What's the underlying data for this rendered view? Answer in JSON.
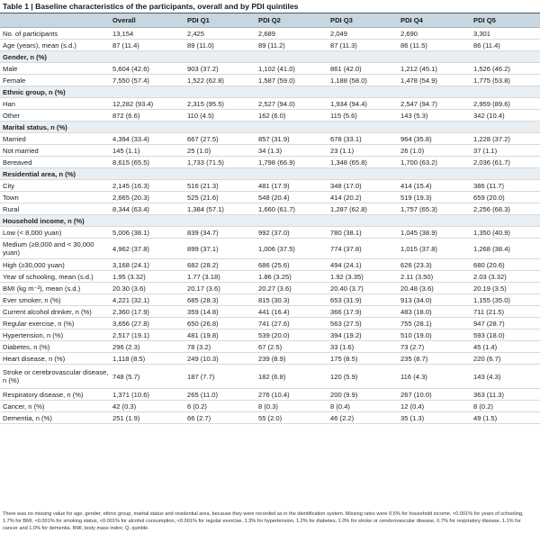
{
  "title": "Table 1 | Baseline characteristics of the participants, overall and by PDI quintiles",
  "headers": [
    "",
    "Overall",
    "PDI Q1",
    "PDI Q2",
    "PDI Q3",
    "PDI Q4",
    "PDI Q5"
  ],
  "rows": [
    {
      "t": "r",
      "h": 1,
      "cells": [
        "No. of participants",
        "13,154",
        "2,425",
        "2,689",
        "2,049",
        "2,690",
        "3,301"
      ]
    },
    {
      "t": "r",
      "h": 1,
      "cells": [
        "Age (years), mean (s.d.)",
        "87 (11.4)",
        "89 (11.0)",
        "89 (11.2)",
        "87 (11.3)",
        "86 (11.5)",
        "86 (11.4)"
      ]
    },
    {
      "t": "s",
      "label": "Gender, n (%)"
    },
    {
      "t": "r",
      "h": 1,
      "cells": [
        "Male",
        "5,604 (42.6)",
        "903 (37.2)",
        "1,102 (41.0)",
        "861 (42.0)",
        "1,212 (45.1)",
        "1,526 (46.2)"
      ]
    },
    {
      "t": "r",
      "h": 1,
      "cells": [
        "Female",
        "7,550 (57.4)",
        "1,522 (62.8)",
        "1,587 (59.0)",
        "1,188 (58.0)",
        "1,478 (54.9)",
        "1,775 (53.8)"
      ]
    },
    {
      "t": "s",
      "label": "Ethnic group, n (%)"
    },
    {
      "t": "r",
      "h": 1,
      "cells": [
        "Han",
        "12,282 (93.4)",
        "2,315 (95.5)",
        "2,527 (94.0)",
        "1,934 (94.4)",
        "2,547 (94.7)",
        "2,959 (89.6)"
      ]
    },
    {
      "t": "r",
      "h": 1,
      "cells": [
        "Other",
        "872 (6.6)",
        "110 (4.5)",
        "162 (6.0)",
        "115 (5.6)",
        "143 (5.3)",
        "342 (10.4)"
      ]
    },
    {
      "t": "s",
      "label": "Marital status, n (%)"
    },
    {
      "t": "r",
      "h": 1,
      "cells": [
        "Married",
        "4,394 (33.4)",
        "667 (27.5)",
        "857 (31.9)",
        "678 (33.1)",
        "964 (35.8)",
        "1,228 (37.2)"
      ]
    },
    {
      "t": "r",
      "h": 1,
      "cells": [
        "Not married",
        "145 (1.1)",
        "25 (1.0)",
        "34 (1.3)",
        "23 (1.1)",
        "26 (1.0)",
        "37 (1.1)"
      ]
    },
    {
      "t": "r",
      "h": 1,
      "cells": [
        "Bereaved",
        "8,615 (65.5)",
        "1,733 (71.5)",
        "1,798 (66.9)",
        "1,348 (65.8)",
        "1,700 (63.2)",
        "2,036 (61.7)"
      ]
    },
    {
      "t": "s",
      "label": "Residential area, n (%)"
    },
    {
      "t": "r",
      "h": 1,
      "cells": [
        "City",
        "2,145 (16.3)",
        "516 (21.3)",
        "481 (17.9)",
        "348 (17.0)",
        "414 (15.4)",
        "386 (11.7)"
      ]
    },
    {
      "t": "r",
      "h": 1,
      "cells": [
        "Town",
        "2,665 (20.3)",
        "525 (21.6)",
        "548 (20.4)",
        "414 (20.2)",
        "519 (19.3)",
        "659 (20.0)"
      ]
    },
    {
      "t": "r",
      "h": 1,
      "cells": [
        "Rural",
        "8,344 (63.4)",
        "1,384 (57.1)",
        "1,660 (61.7)",
        "1,287 (62.8)",
        "1,757 (65.3)",
        "2,256 (68.3)"
      ]
    },
    {
      "t": "s",
      "label": "Household income, n (%)"
    },
    {
      "t": "r",
      "h": 1,
      "cells": [
        "Low (< 8,000 yuan)",
        "5,006 (38.1)",
        "839 (34.7)",
        "992 (37.0)",
        "780 (38.1)",
        "1,045 (38.9)",
        "1,350 (40.9)"
      ]
    },
    {
      "t": "r",
      "h": 2,
      "cells": [
        "Medium (≥8,000 and < 30,000 yuan)",
        "4,962 (37.8)",
        "899 (37.1)",
        "1,006 (37.5)",
        "774 (37.8)",
        "1,015 (37.8)",
        "1,268 (38.4)"
      ]
    },
    {
      "t": "r",
      "h": 1,
      "cells": [
        "High (≥30,000 yuan)",
        "3,168 (24.1)",
        "682 (28.2)",
        "686 (25.6)",
        "494 (24.1)",
        "626 (23.3)",
        "680 (20.6)"
      ]
    },
    {
      "t": "r",
      "h": 1,
      "cells": [
        "Year of schooling, mean (s.d.)",
        "1.95 (3.32)",
        "1.77 (3.18)",
        "1.86 (3.25)",
        "1.92 (3.35)",
        "2.11 (3.50)",
        "2.03 (3.32)"
      ]
    },
    {
      "t": "r",
      "h": 1,
      "cells": [
        "BMI (kg m⁻²), mean (s.d.)",
        "20.30 (3.6)",
        "20.17 (3.6)",
        "20.27 (3.6)",
        "20.40 (3.7)",
        "20.48 (3.6)",
        "20.19 (3.5)"
      ]
    },
    {
      "t": "r",
      "h": 1,
      "cells": [
        "Ever smoker, n (%)",
        "4,221 (32.1)",
        "685 (28.3)",
        "815 (30.3)",
        "653 (31.9)",
        "913 (34.0)",
        "1,155 (35.0)"
      ]
    },
    {
      "t": "r",
      "h": 1,
      "cells": [
        "Current alcohol drinker, n (%)",
        "2,360 (17.9)",
        "359 (14.8)",
        "441 (16.4)",
        "366 (17.9)",
        "483 (18.0)",
        "711 (21.5)"
      ]
    },
    {
      "t": "r",
      "h": 1,
      "cells": [
        "Regular exercise, n (%)",
        "3,656 (27.8)",
        "650 (26.8)",
        "741 (27.6)",
        "563 (27.5)",
        "755 (28.1)",
        "947 (28.7)"
      ]
    },
    {
      "t": "r",
      "h": 1,
      "cells": [
        "Hypertension, n (%)",
        "2,517 (19.1)",
        "481 (19.8)",
        "539 (20.0)",
        "394 (19.2)",
        "510 (19.0)",
        "593 (18.0)"
      ]
    },
    {
      "t": "r",
      "h": 1,
      "cells": [
        "Diabetes, n (%)",
        "296 (2.3)",
        "78 (3.2)",
        "67 (2.5)",
        "33 (1.6)",
        "73 (2.7)",
        "45 (1.4)"
      ]
    },
    {
      "t": "r",
      "h": 1,
      "cells": [
        "Heart disease, n (%)",
        "1,118 (8.5)",
        "249 (10.3)",
        "239 (8.9)",
        "175 (8.5)",
        "235 (8.7)",
        "220 (6.7)"
      ]
    },
    {
      "t": "r",
      "h": 3,
      "cells": [
        "Stroke or cerebrovascular disease, n (%)",
        "748 (5.7)",
        "187 (7.7)",
        "182 (6.8)",
        "120 (5.9)",
        "116 (4.3)",
        "143 (4.3)"
      ]
    },
    {
      "t": "r",
      "h": 1,
      "cells": [
        "Respiratory disease, n (%)",
        "1,371 (10.6)",
        "265 (11.0)",
        "276 (10.4)",
        "200 (9.9)",
        "267 (10.0)",
        "363 (11.3)"
      ]
    },
    {
      "t": "r",
      "h": 1,
      "cells": [
        "Cancer, n (%)",
        "42 (0.3)",
        "6 (0.2)",
        "8 (0.3)",
        "8 (0.4)",
        "12 (0.4)",
        "8 (0.2)"
      ]
    },
    {
      "t": "r",
      "h": 1,
      "cells": [
        "Dementia, n (%)",
        "251 (1.9)",
        "66 (2.7)",
        "55 (2.0)",
        "46 (2.2)",
        "35 (1.3)",
        "49 (1.5)"
      ]
    }
  ],
  "footnote": "There was no missing value for age, gender, ethnic group, marital status and residential area, because they were recorded as in the identification system. Missing rates were 0.5% for household income, <0.001% for years of schooling, 1.7% for BMI, <0.001% for smoking status, <0.001% for alcohol consumption, <0.001% for regular exercise, 1.3% for hypertension, 1.2% for diabetes, 1.0% for stroke or cerebrovascular disease, 0.7% for respiratory disease, 1.1% for cancer and 1.0% for dementia. BMI, body mass index; Q, quintile."
}
